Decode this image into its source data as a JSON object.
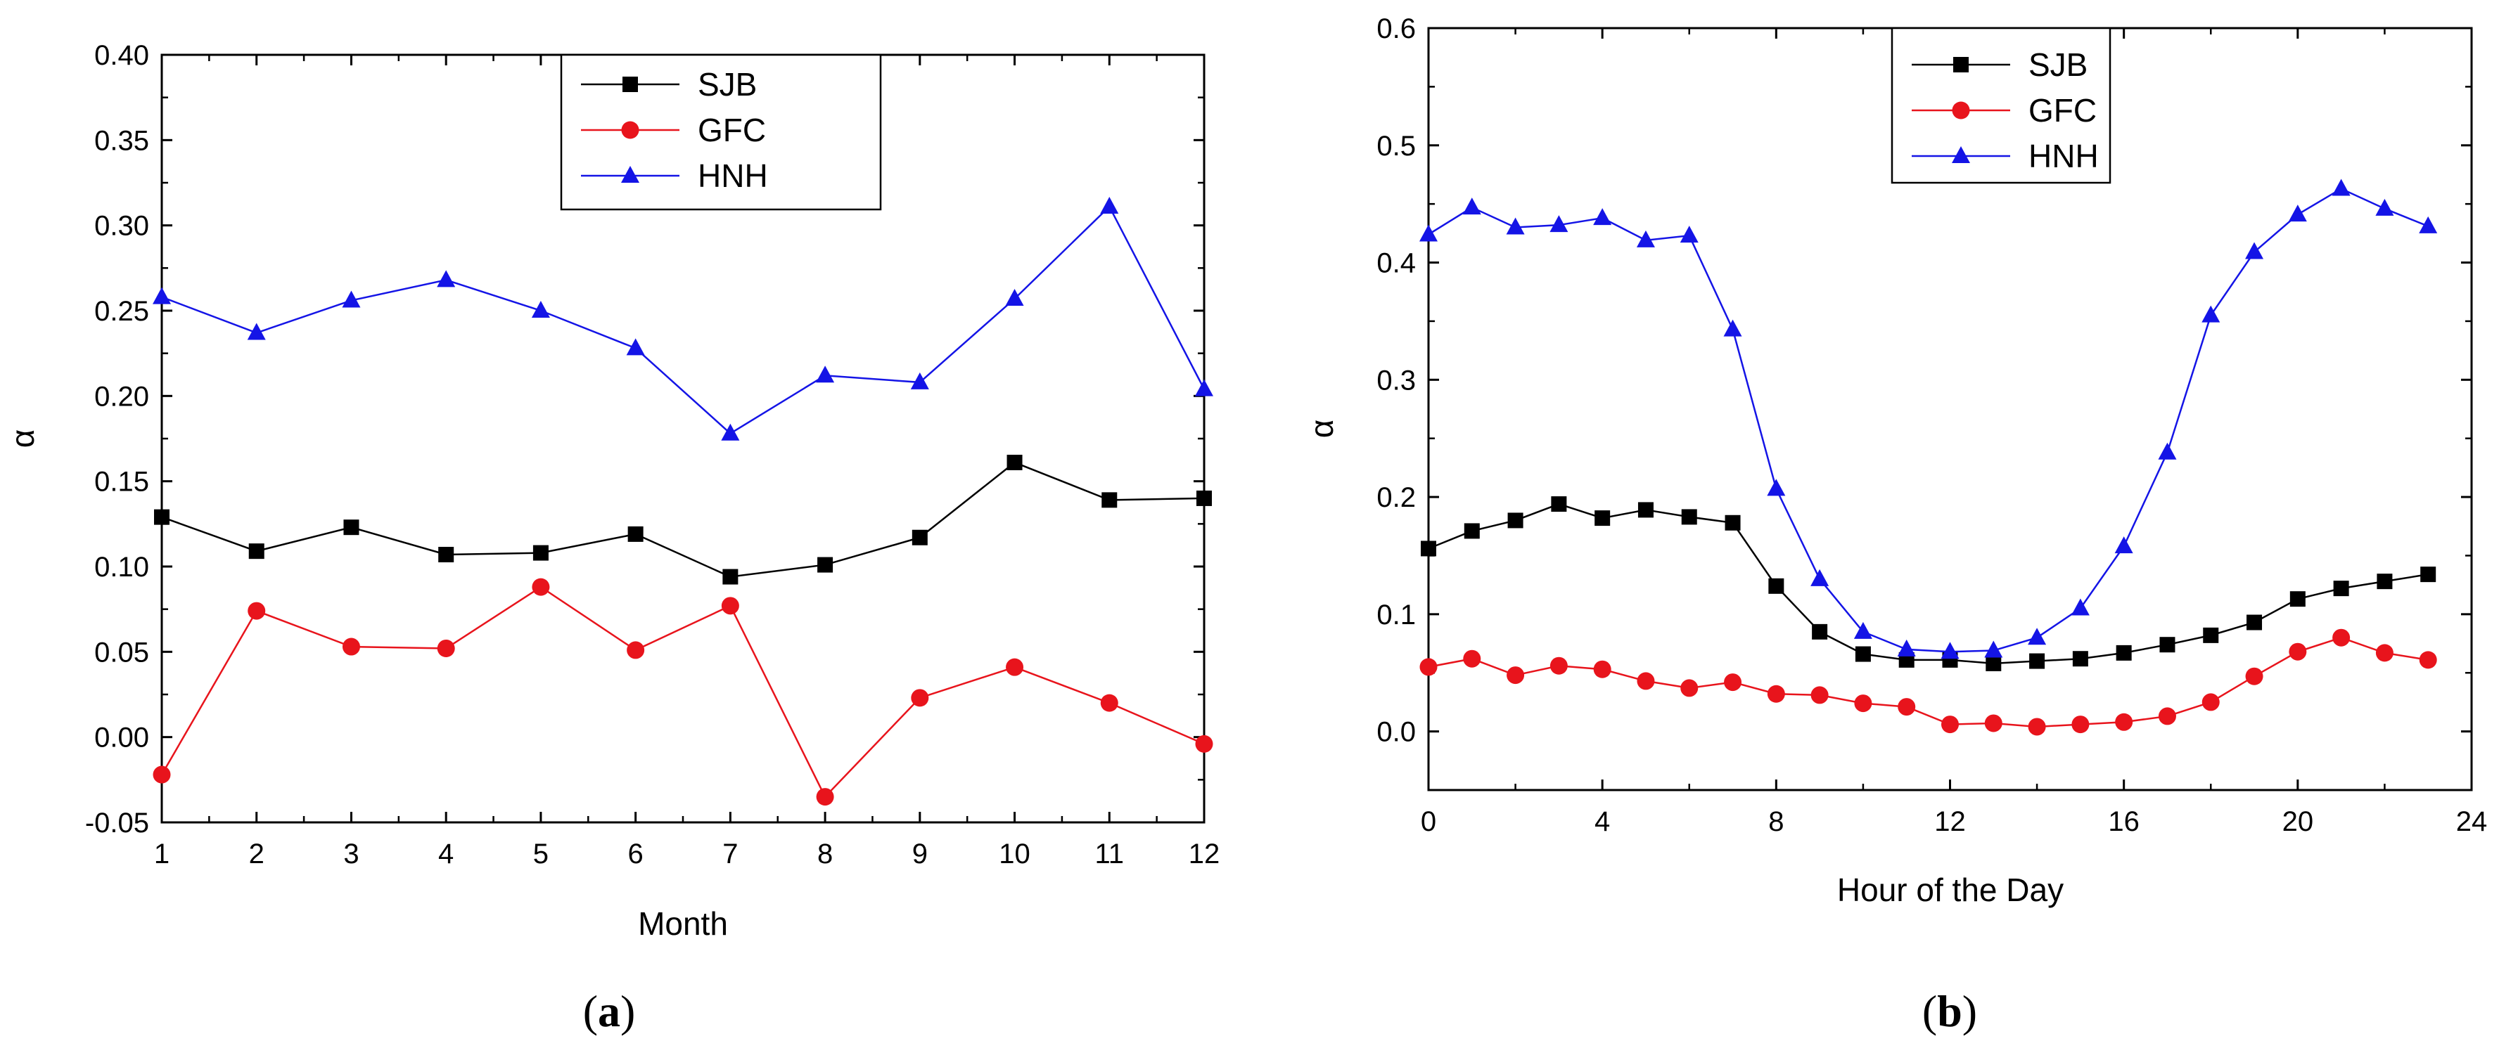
{
  "chart_data": [
    {
      "type": "line",
      "panel_label": "(a)",
      "panel_letter": "a",
      "title": "",
      "xlabel": "Month",
      "ylabel": "α",
      "xlim": [
        1,
        12
      ],
      "ylim": [
        -0.05,
        0.4
      ],
      "xticks": [
        1,
        2,
        3,
        4,
        5,
        6,
        7,
        8,
        9,
        10,
        11,
        12
      ],
      "xtick_labels": [
        "1",
        "2",
        "3",
        "4",
        "5",
        "6",
        "7",
        "8",
        "9",
        "10",
        "11",
        "12"
      ],
      "yticks": [
        -0.05,
        0.0,
        0.05,
        0.1,
        0.15,
        0.2,
        0.25,
        0.3,
        0.35,
        0.4
      ],
      "ytick_labels": [
        "-0.05",
        "0.00",
        "0.05",
        "0.10",
        "0.15",
        "0.20",
        "0.25",
        "0.30",
        "0.35",
        "0.40"
      ],
      "grid": false,
      "legend_position": "top-center",
      "x": [
        1,
        2,
        3,
        4,
        5,
        6,
        7,
        8,
        9,
        10,
        11,
        12
      ],
      "series": [
        {
          "name": "SJB",
          "color": "#000000",
          "marker": "square",
          "values": [
            0.129,
            0.109,
            0.123,
            0.107,
            0.108,
            0.119,
            0.094,
            0.101,
            0.117,
            0.161,
            0.139,
            0.14
          ]
        },
        {
          "name": "GFC",
          "color": "#e8141c",
          "marker": "circle",
          "values": [
            -0.022,
            0.074,
            0.053,
            0.052,
            0.088,
            0.051,
            0.077,
            -0.035,
            0.023,
            0.041,
            0.02,
            -0.004
          ]
        },
        {
          "name": "HNH",
          "color": "#1414e6",
          "marker": "triangle",
          "values": [
            0.258,
            0.237,
            0.256,
            0.268,
            0.25,
            0.228,
            0.178,
            0.212,
            0.208,
            0.257,
            0.311,
            0.204
          ]
        }
      ]
    },
    {
      "type": "line",
      "panel_label": "(b)",
      "panel_letter": "b",
      "title": "",
      "xlabel": "Hour of the Day",
      "ylabel": "α",
      "xlim": [
        0,
        24
      ],
      "ylim": [
        -0.05,
        0.6
      ],
      "xticks": [
        0,
        4,
        8,
        12,
        16,
        20,
        24
      ],
      "xtick_labels": [
        "0",
        "4",
        "8",
        "12",
        "16",
        "20",
        "24"
      ],
      "yticks": [
        0.0,
        0.1,
        0.2,
        0.3,
        0.4,
        0.5,
        0.6
      ],
      "ytick_labels": [
        "0.0",
        "0.1",
        "0.2",
        "0.3",
        "0.4",
        "0.5",
        "0.6"
      ],
      "grid": false,
      "legend_position": "top-center",
      "x": [
        0,
        1,
        2,
        3,
        4,
        5,
        6,
        7,
        8,
        9,
        10,
        11,
        12,
        13,
        14,
        15,
        16,
        17,
        18,
        19,
        20,
        21,
        22,
        23
      ],
      "series": [
        {
          "name": "SJB",
          "color": "#000000",
          "marker": "square",
          "values": [
            0.156,
            0.171,
            0.18,
            0.194,
            0.182,
            0.189,
            0.183,
            0.178,
            0.124,
            0.085,
            0.066,
            0.061,
            0.061,
            0.058,
            0.06,
            0.062,
            0.067,
            0.074,
            0.082,
            0.093,
            0.113,
            0.122,
            0.128,
            0.134
          ]
        },
        {
          "name": "GFC",
          "color": "#e8141c",
          "marker": "circle",
          "values": [
            0.055,
            0.062,
            0.048,
            0.056,
            0.053,
            0.043,
            0.037,
            0.042,
            0.032,
            0.031,
            0.024,
            0.021,
            0.006,
            0.007,
            0.004,
            0.006,
            0.008,
            0.013,
            0.025,
            0.047,
            0.068,
            0.08,
            0.067,
            0.061
          ]
        },
        {
          "name": "HNH",
          "color": "#1414e6",
          "marker": "triangle",
          "values": [
            0.424,
            0.447,
            0.43,
            0.432,
            0.438,
            0.419,
            0.423,
            0.343,
            0.207,
            0.13,
            0.085,
            0.07,
            0.068,
            0.069,
            0.08,
            0.105,
            0.158,
            0.238,
            0.355,
            0.409,
            0.441,
            0.463,
            0.446,
            0.431
          ]
        }
      ]
    }
  ]
}
